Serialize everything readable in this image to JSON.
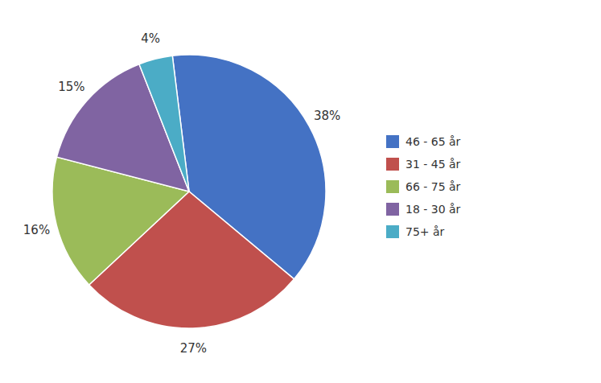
{
  "chart_data": {
    "type": "pie",
    "categories": [
      "46 - 65 år",
      "31 - 45 år",
      "66 - 75 år",
      "18 - 30 år",
      "75+ år"
    ],
    "values": [
      38,
      27,
      16,
      15,
      4
    ],
    "value_labels": [
      "38%",
      "27%",
      "16%",
      "15%",
      "4%"
    ],
    "colors": [
      "#4472C4",
      "#C0504D",
      "#9BBB59",
      "#8064A2",
      "#4BACC6"
    ],
    "data_labels": true,
    "legend": "right"
  }
}
